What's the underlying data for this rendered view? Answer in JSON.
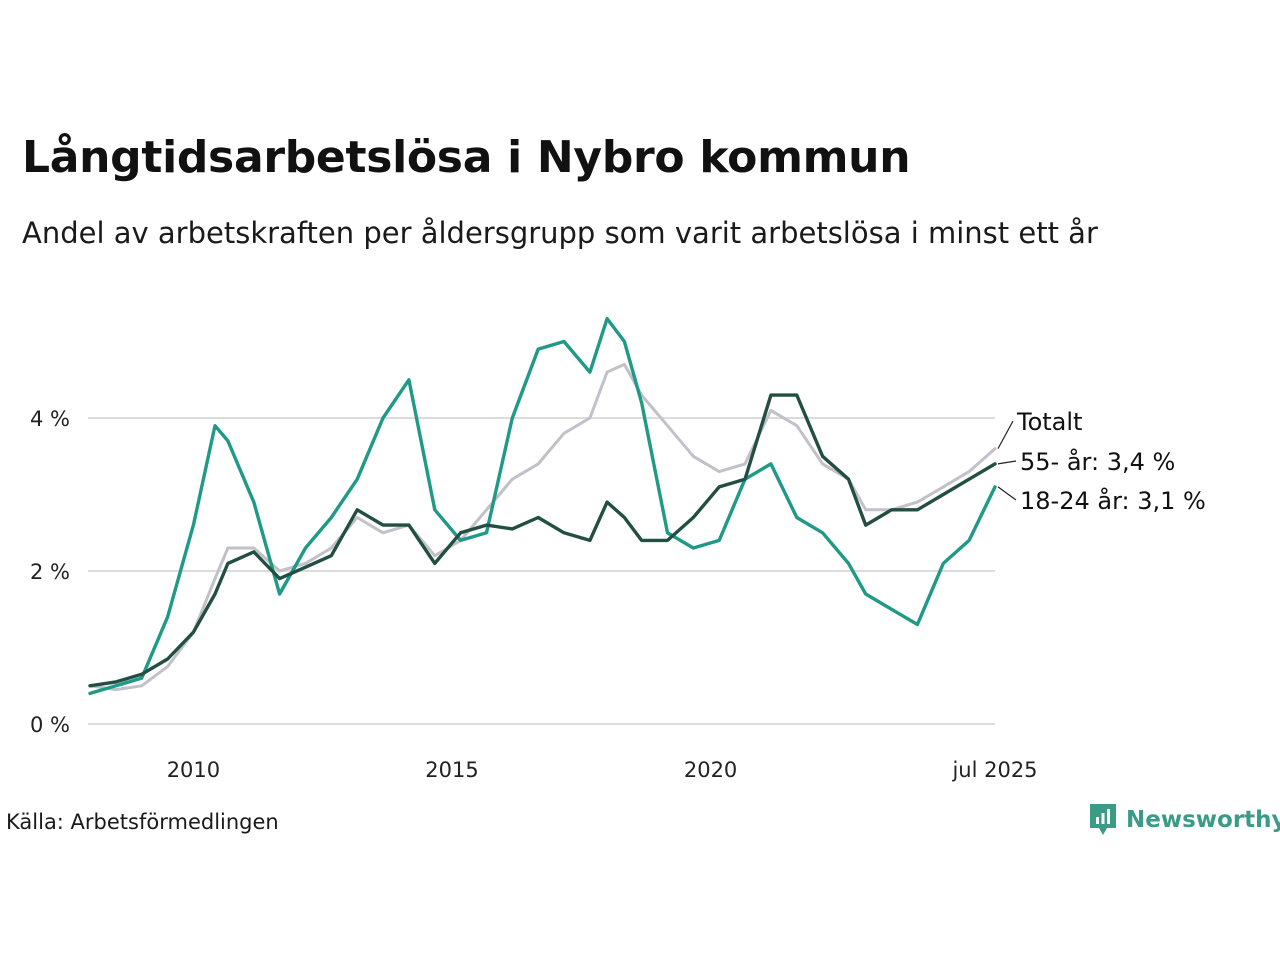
{
  "title": "Långtidsarbetslösa i Nybro kommun",
  "subtitle": "Andel av arbetskraften per åldersgrupp som varit arbetslösa i minst ett år",
  "source": "Källa: Arbetsförmedlingen",
  "logo_text": "Newsworthy",
  "colors": {
    "totalt": "#c2c0c8",
    "age55": "#234f42",
    "age1824": "#1f9a86",
    "grid": "#dcdcdc",
    "brand": "#3a9b86"
  },
  "chart_data": {
    "type": "line",
    "title": "Långtidsarbetslösa i Nybro kommun",
    "subtitle": "Andel av arbetskraften per åldersgrupp som varit arbetslösa i minst ett år",
    "xlim": [
      "2008-01",
      "2025-07"
    ],
    "ylim": [
      0,
      5.5
    ],
    "y_ticks": [
      0,
      2,
      4
    ],
    "y_tick_labels": [
      "0 %",
      "2 %",
      "4 %"
    ],
    "x_ticks": [
      "2010-01",
      "2015-01",
      "2020-01",
      "2025-07"
    ],
    "x_tick_labels": [
      "2010",
      "2015",
      "2020",
      "jul 2025"
    ],
    "grid": true,
    "legend": "direct labels at line ends",
    "series": [
      {
        "name": "Totalt",
        "label": "Totalt",
        "key": "totalt",
        "points": [
          [
            "2008-01",
            0.5
          ],
          [
            "2008-07",
            0.45
          ],
          [
            "2009-01",
            0.5
          ],
          [
            "2009-07",
            0.75
          ],
          [
            "2010-01",
            1.2
          ],
          [
            "2010-06",
            1.9
          ],
          [
            "2010-09",
            2.3
          ],
          [
            "2011-03",
            2.3
          ],
          [
            "2011-09",
            2.0
          ],
          [
            "2012-03",
            2.1
          ],
          [
            "2012-09",
            2.3
          ],
          [
            "2013-03",
            2.7
          ],
          [
            "2013-09",
            2.5
          ],
          [
            "2014-03",
            2.6
          ],
          [
            "2014-09",
            2.2
          ],
          [
            "2015-03",
            2.4
          ],
          [
            "2015-09",
            2.8
          ],
          [
            "2016-03",
            3.2
          ],
          [
            "2016-09",
            3.4
          ],
          [
            "2017-03",
            3.8
          ],
          [
            "2017-09",
            4.0
          ],
          [
            "2018-01",
            4.6
          ],
          [
            "2018-05",
            4.7
          ],
          [
            "2018-09",
            4.3
          ],
          [
            "2019-03",
            3.9
          ],
          [
            "2019-09",
            3.5
          ],
          [
            "2020-03",
            3.3
          ],
          [
            "2020-09",
            3.4
          ],
          [
            "2021-03",
            4.1
          ],
          [
            "2021-09",
            3.9
          ],
          [
            "2022-03",
            3.4
          ],
          [
            "2022-09",
            3.2
          ],
          [
            "2023-01",
            2.8
          ],
          [
            "2023-07",
            2.8
          ],
          [
            "2024-01",
            2.9
          ],
          [
            "2024-07",
            3.1
          ],
          [
            "2025-01",
            3.3
          ],
          [
            "2025-07",
            3.6
          ]
        ]
      },
      {
        "name": "55- år",
        "label": "55- år: 3,4 %",
        "key": "age55",
        "points": [
          [
            "2008-01",
            0.5
          ],
          [
            "2008-07",
            0.55
          ],
          [
            "2009-01",
            0.65
          ],
          [
            "2009-07",
            0.85
          ],
          [
            "2010-01",
            1.2
          ],
          [
            "2010-06",
            1.7
          ],
          [
            "2010-09",
            2.1
          ],
          [
            "2011-03",
            2.25
          ],
          [
            "2011-09",
            1.9
          ],
          [
            "2012-03",
            2.05
          ],
          [
            "2012-09",
            2.2
          ],
          [
            "2013-03",
            2.8
          ],
          [
            "2013-09",
            2.6
          ],
          [
            "2014-03",
            2.6
          ],
          [
            "2014-09",
            2.1
          ],
          [
            "2015-03",
            2.5
          ],
          [
            "2015-09",
            2.6
          ],
          [
            "2016-03",
            2.55
          ],
          [
            "2016-09",
            2.7
          ],
          [
            "2017-03",
            2.5
          ],
          [
            "2017-09",
            2.4
          ],
          [
            "2018-01",
            2.9
          ],
          [
            "2018-05",
            2.7
          ],
          [
            "2018-09",
            2.4
          ],
          [
            "2019-03",
            2.4
          ],
          [
            "2019-09",
            2.7
          ],
          [
            "2020-03",
            3.1
          ],
          [
            "2020-09",
            3.2
          ],
          [
            "2021-03",
            4.3
          ],
          [
            "2021-09",
            4.3
          ],
          [
            "2022-03",
            3.5
          ],
          [
            "2022-09",
            3.2
          ],
          [
            "2023-01",
            2.6
          ],
          [
            "2023-07",
            2.8
          ],
          [
            "2024-01",
            2.8
          ],
          [
            "2024-07",
            3.0
          ],
          [
            "2025-01",
            3.2
          ],
          [
            "2025-07",
            3.4
          ]
        ]
      },
      {
        "name": "18-24 år",
        "label": "18-24 år: 3,1 %",
        "key": "age1824",
        "points": [
          [
            "2008-01",
            0.4
          ],
          [
            "2008-07",
            0.5
          ],
          [
            "2009-01",
            0.6
          ],
          [
            "2009-07",
            1.4
          ],
          [
            "2010-01",
            2.6
          ],
          [
            "2010-06",
            3.9
          ],
          [
            "2010-09",
            3.7
          ],
          [
            "2011-03",
            2.9
          ],
          [
            "2011-09",
            1.7
          ],
          [
            "2012-03",
            2.3
          ],
          [
            "2012-09",
            2.7
          ],
          [
            "2013-03",
            3.2
          ],
          [
            "2013-09",
            4.0
          ],
          [
            "2014-03",
            4.5
          ],
          [
            "2014-09",
            2.8
          ],
          [
            "2015-03",
            2.4
          ],
          [
            "2015-09",
            2.5
          ],
          [
            "2016-03",
            4.0
          ],
          [
            "2016-09",
            4.9
          ],
          [
            "2017-03",
            5.0
          ],
          [
            "2017-09",
            4.6
          ],
          [
            "2018-01",
            5.3
          ],
          [
            "2018-05",
            5.0
          ],
          [
            "2018-09",
            4.2
          ],
          [
            "2019-03",
            2.5
          ],
          [
            "2019-09",
            2.3
          ],
          [
            "2020-03",
            2.4
          ],
          [
            "2020-09",
            3.2
          ],
          [
            "2021-03",
            3.4
          ],
          [
            "2021-09",
            2.7
          ],
          [
            "2022-03",
            2.5
          ],
          [
            "2022-09",
            2.1
          ],
          [
            "2023-01",
            1.7
          ],
          [
            "2023-07",
            1.5
          ],
          [
            "2024-01",
            1.3
          ],
          [
            "2024-07",
            2.1
          ],
          [
            "2025-01",
            2.4
          ],
          [
            "2025-07",
            3.1
          ]
        ]
      }
    ]
  }
}
